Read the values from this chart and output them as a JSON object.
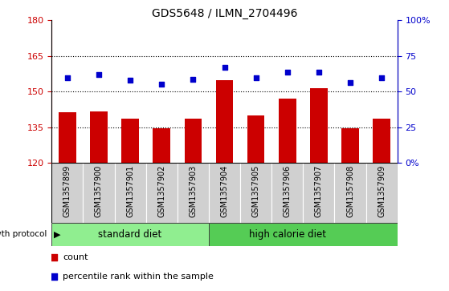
{
  "title": "GDS5648 / ILMN_2704496",
  "samples": [
    "GSM1357899",
    "GSM1357900",
    "GSM1357901",
    "GSM1357902",
    "GSM1357903",
    "GSM1357904",
    "GSM1357905",
    "GSM1357906",
    "GSM1357907",
    "GSM1357908",
    "GSM1357909"
  ],
  "counts": [
    141.5,
    141.8,
    138.5,
    134.5,
    138.5,
    155.0,
    140.0,
    147.0,
    151.5,
    134.5,
    138.5
  ],
  "percentile_ranks": [
    60.0,
    62.0,
    58.0,
    55.0,
    58.5,
    67.0,
    60.0,
    63.5,
    63.5,
    56.5,
    59.5
  ],
  "ylim_left": [
    120,
    180
  ],
  "ylim_right": [
    0,
    100
  ],
  "yticks_left": [
    120,
    135,
    150,
    165,
    180
  ],
  "yticks_right": [
    0,
    25,
    50,
    75,
    100
  ],
  "ytick_labels_left": [
    "120",
    "135",
    "150",
    "165",
    "180"
  ],
  "ytick_labels_right": [
    "0%",
    "25",
    "50",
    "75",
    "100%"
  ],
  "bar_color": "#cc0000",
  "dot_color": "#0000cc",
  "label_bg_color": "#d0d0d0",
  "standard_diet_color": "#90ee90",
  "high_calorie_color": "#55cc55",
  "standard_diet_samples": 5,
  "high_calorie_samples": 6,
  "group_label_standard": "standard diet",
  "group_label_high": "high calorie diet",
  "protocol_label": "growth protocol",
  "legend_count_label": "count",
  "legend_percentile_label": "percentile rank within the sample",
  "dotted_lines": [
    135,
    150,
    165
  ],
  "bar_width": 0.55
}
